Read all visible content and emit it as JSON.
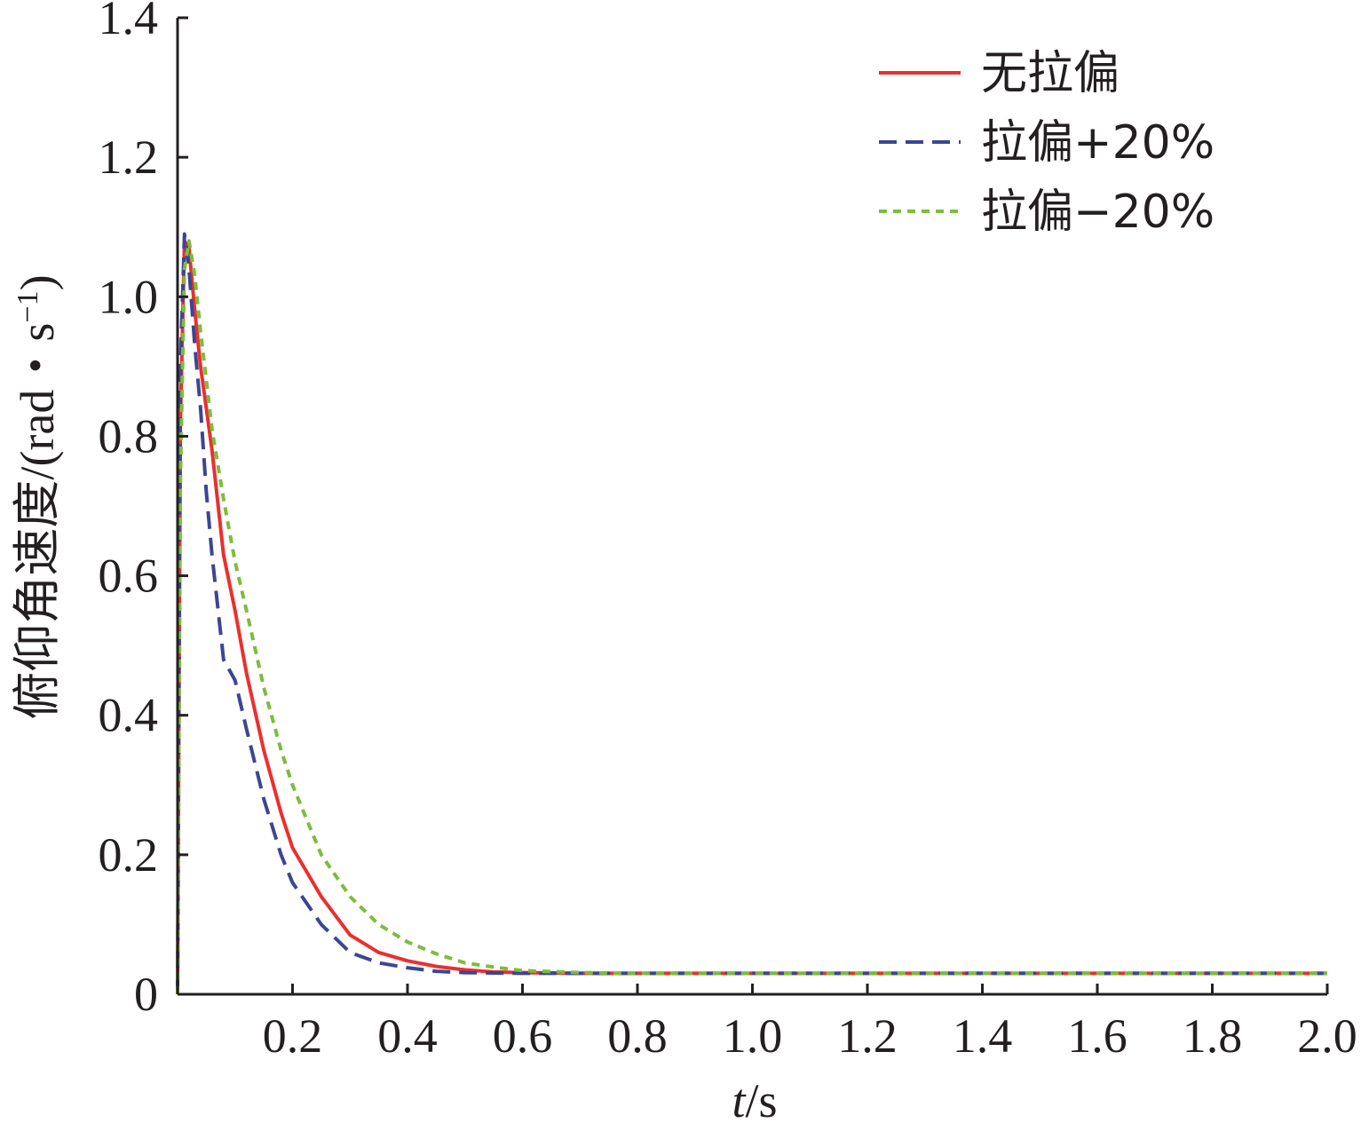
{
  "chart_data": {
    "type": "line",
    "title": "",
    "xlabel_var": "t",
    "xlabel_unit": "/s",
    "ylabel": "俯仰角速度/(rad・s",
    "ylabel_sup": "−1",
    "ylabel_close": ")",
    "xlim": [
      0,
      2.0
    ],
    "ylim": [
      0,
      1.4
    ],
    "xticks": [
      "0.2",
      "0.4",
      "0.6",
      "0.8",
      "1.0",
      "1.2",
      "1.4",
      "1.6",
      "1.8",
      "2.0"
    ],
    "yticks": [
      "0",
      "0.2",
      "0.4",
      "0.6",
      "0.8",
      "1.0",
      "1.2",
      "1.4"
    ],
    "grid": false,
    "legend_position": "top-right",
    "series": [
      {
        "name": "无拉偏",
        "color": "#e8312f",
        "dash": "solid",
        "x": [
          0,
          0.005,
          0.012,
          0.02,
          0.03,
          0.04,
          0.05,
          0.06,
          0.08,
          0.1,
          0.12,
          0.15,
          0.18,
          0.2,
          0.25,
          0.3,
          0.35,
          0.4,
          0.45,
          0.5,
          0.55,
          0.6,
          0.7,
          0.8,
          1.0,
          1.5,
          2.0
        ],
        "y": [
          0,
          0.82,
          1.08,
          1.07,
          0.98,
          0.9,
          0.84,
          0.78,
          0.63,
          0.55,
          0.46,
          0.35,
          0.26,
          0.21,
          0.14,
          0.085,
          0.06,
          0.048,
          0.04,
          0.035,
          0.032,
          0.031,
          0.03,
          0.03,
          0.03,
          0.03,
          0.03
        ]
      },
      {
        "name": "拉偏+20%",
        "color": "#3d4594",
        "dash": "long-dash",
        "x": [
          0,
          0.005,
          0.012,
          0.02,
          0.03,
          0.04,
          0.05,
          0.06,
          0.08,
          0.1,
          0.12,
          0.15,
          0.18,
          0.2,
          0.25,
          0.3,
          0.35,
          0.4,
          0.45,
          0.5,
          0.6,
          0.7,
          0.8,
          1.0,
          1.5,
          2.0
        ],
        "y": [
          0,
          0.9,
          1.09,
          1.04,
          0.93,
          0.84,
          0.72,
          0.63,
          0.48,
          0.45,
          0.38,
          0.28,
          0.2,
          0.16,
          0.1,
          0.06,
          0.045,
          0.038,
          0.033,
          0.031,
          0.03,
          0.03,
          0.03,
          0.03,
          0.03,
          0.03
        ]
      },
      {
        "name": "拉偏−20%",
        "color": "#7cbd3c",
        "dash": "dotted",
        "x": [
          0,
          0.005,
          0.012,
          0.02,
          0.03,
          0.04,
          0.05,
          0.06,
          0.08,
          0.1,
          0.12,
          0.15,
          0.18,
          0.2,
          0.25,
          0.3,
          0.35,
          0.4,
          0.45,
          0.5,
          0.55,
          0.6,
          0.7,
          0.8,
          1.0,
          1.5,
          2.0
        ],
        "y": [
          0,
          0.74,
          1.04,
          1.08,
          1.03,
          0.95,
          0.88,
          0.81,
          0.71,
          0.62,
          0.55,
          0.44,
          0.35,
          0.3,
          0.2,
          0.14,
          0.1,
          0.075,
          0.058,
          0.045,
          0.039,
          0.034,
          0.031,
          0.03,
          0.03,
          0.03,
          0.03
        ]
      }
    ]
  }
}
